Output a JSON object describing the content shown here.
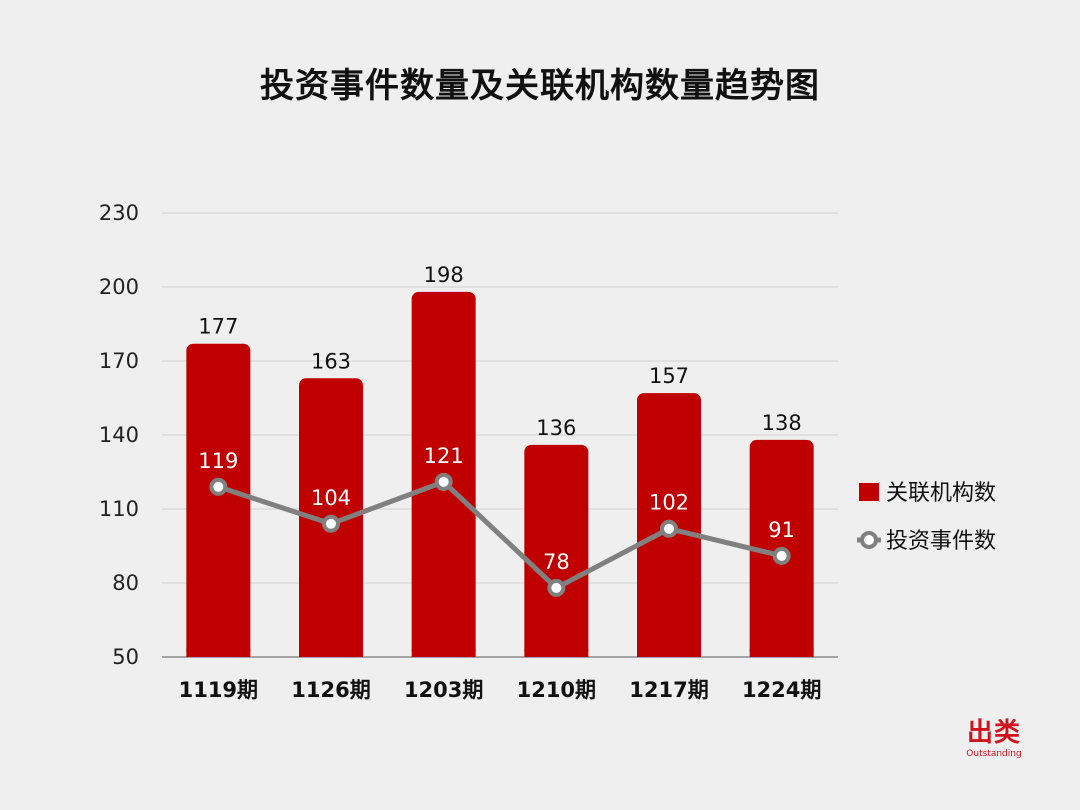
{
  "chart_data": {
    "type": "bar",
    "title": "投资事件数量及关联机构数量趋势图",
    "categories": [
      "1119期",
      "1126期",
      "1203期",
      "1210期",
      "1217期",
      "1224期"
    ],
    "ylim": [
      50,
      230
    ],
    "yticks": [
      50,
      80,
      110,
      140,
      170,
      200,
      230
    ],
    "grid": true,
    "legend_position": "right",
    "series": [
      {
        "name": "关联机构数",
        "kind": "bar",
        "values": [
          177,
          163,
          198,
          136,
          157,
          138
        ],
        "color": "#c00000"
      },
      {
        "name": "投资事件数",
        "kind": "line",
        "values": [
          119,
          104,
          121,
          78,
          102,
          91
        ],
        "color": "#808080"
      }
    ]
  },
  "brand": {
    "cn": "出类",
    "en": "Outstanding",
    "color": "#d0121a"
  }
}
